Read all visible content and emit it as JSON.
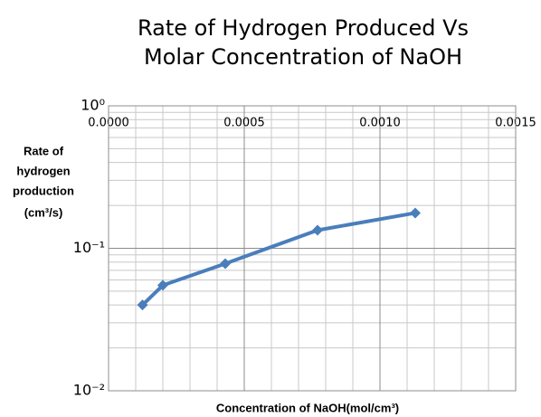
{
  "chart_data": {
    "type": "line",
    "title": [
      "Rate of Hydrogen Produced Vs",
      "Molar Concentration of NaOH"
    ],
    "xlabel": "Concentration of NaOH(mol/cm³)",
    "ylabel": [
      "Rate of",
      "hydrogen",
      "production",
      "(cm³/s)"
    ],
    "x": [
      0.000125,
      0.0002,
      0.00043,
      0.00077,
      0.00113
    ],
    "series": [
      {
        "name": "Rate",
        "color": "#4a7ebb",
        "values": [
          0.04,
          0.055,
          0.078,
          0.134,
          0.177
        ]
      }
    ],
    "xlim": [
      0,
      0.0015
    ],
    "xticks": [
      {
        "value": 0,
        "label": "0.0000"
      },
      {
        "value": 0.0005,
        "label": "0.0005"
      },
      {
        "value": 0.001,
        "label": "0.0010"
      },
      {
        "value": 0.0015,
        "label": "0.0015"
      }
    ],
    "ylim": [
      0.01,
      1
    ],
    "yticks": [
      {
        "value": 1,
        "label": "10⁰"
      },
      {
        "value": 0.1,
        "label": "10⁻¹"
      },
      {
        "value": 0.01,
        "label": "10⁻²"
      }
    ],
    "ylog": true,
    "grid": true,
    "minor_grid": true
  }
}
